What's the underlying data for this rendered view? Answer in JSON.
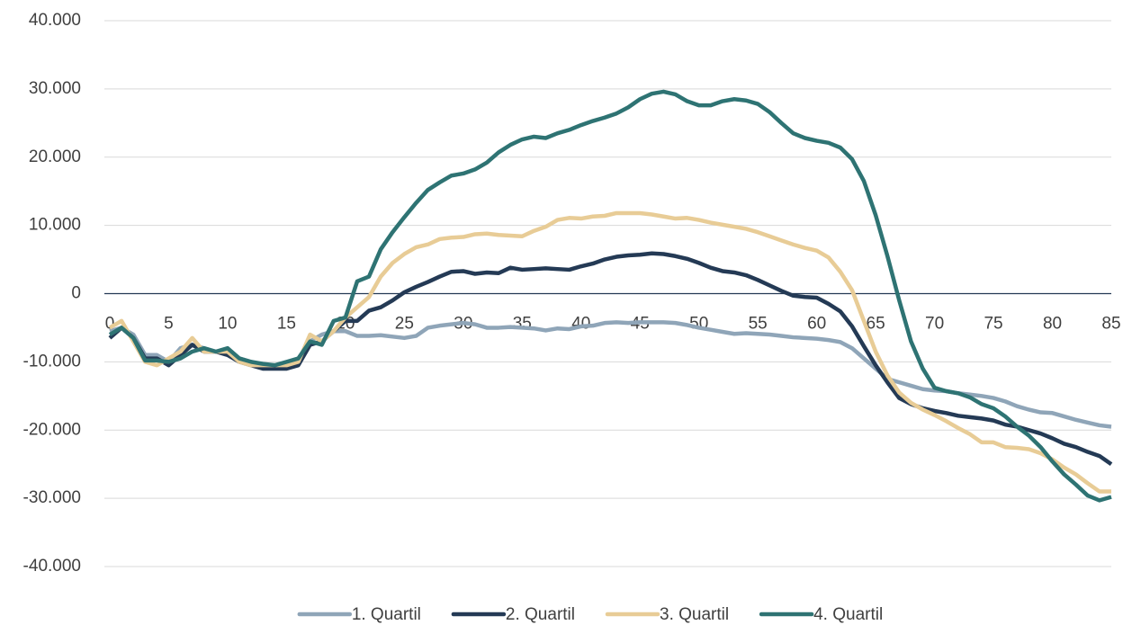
{
  "chart_data": {
    "type": "line",
    "x": [
      0,
      1,
      2,
      3,
      4,
      5,
      6,
      7,
      8,
      9,
      10,
      11,
      12,
      13,
      14,
      15,
      16,
      17,
      18,
      19,
      20,
      21,
      22,
      23,
      24,
      25,
      26,
      27,
      28,
      29,
      30,
      31,
      32,
      33,
      34,
      35,
      36,
      37,
      38,
      39,
      40,
      41,
      42,
      43,
      44,
      45,
      46,
      47,
      48,
      49,
      50,
      51,
      52,
      53,
      54,
      55,
      56,
      57,
      58,
      59,
      60,
      61,
      62,
      63,
      64,
      65,
      66,
      67,
      68,
      69,
      70,
      71,
      72,
      73,
      74,
      75,
      76,
      77,
      78,
      79,
      80,
      81,
      82,
      83,
      84,
      85
    ],
    "xlim": [
      0,
      85
    ],
    "xticks": [
      0,
      5,
      10,
      15,
      20,
      25,
      30,
      35,
      40,
      45,
      50,
      55,
      60,
      65,
      70,
      75,
      80,
      85
    ],
    "ylim": [
      -40000,
      40000
    ],
    "yticks": [
      {
        "value": -40000,
        "label": "-40.000"
      },
      {
        "value": -30000,
        "label": "-30.000"
      },
      {
        "value": -20000,
        "label": "-20.000"
      },
      {
        "value": -10000,
        "label": "-10.000"
      },
      0,
      {
        "value": 10000,
        "label": "10.000"
      },
      {
        "value": 20000,
        "label": "20.000"
      },
      {
        "value": 30000,
        "label": "30.000"
      },
      {
        "value": 40000,
        "label": "40.000"
      }
    ],
    "grid": true,
    "legend": "bottom",
    "series": [
      {
        "name": "1. Quartil",
        "color": "#8fa5b8",
        "values": [
          -5500,
          -5000,
          -6000,
          -9000,
          -9000,
          -10000,
          -8000,
          -7500,
          -8000,
          -8500,
          -8500,
          -9500,
          -10000,
          -10500,
          -10500,
          -10500,
          -10000,
          -7000,
          -6000,
          -5500,
          -5500,
          -6200,
          -6200,
          -6100,
          -6300,
          -6500,
          -6200,
          -5000,
          -4700,
          -4500,
          -4300,
          -4500,
          -5000,
          -5000,
          -4900,
          -5000,
          -5100,
          -5400,
          -5100,
          -5200,
          -4800,
          -4700,
          -4300,
          -4200,
          -4300,
          -4200,
          -4200,
          -4200,
          -4300,
          -4600,
          -5000,
          -5300,
          -5600,
          -5900,
          -5800,
          -5900,
          -6000,
          -6200,
          -6400,
          -6500,
          -6600,
          -6800,
          -7100,
          -8000,
          -9500,
          -11000,
          -12500,
          -13000,
          -13500,
          -14000,
          -14200,
          -14300,
          -14600,
          -14800,
          -15000,
          -15300,
          -15800,
          -16500,
          -17000,
          -17400,
          -17500,
          -18000,
          -18500,
          -18900,
          -19300,
          -19500
        ]
      },
      {
        "name": "2. Quartil",
        "color": "#243a55",
        "values": [
          -6500,
          -5000,
          -6500,
          -9500,
          -9500,
          -10500,
          -9000,
          -7500,
          -8500,
          -8500,
          -9000,
          -10000,
          -10500,
          -11000,
          -11000,
          -11000,
          -10500,
          -7500,
          -7000,
          -5500,
          -4000,
          -4000,
          -2500,
          -2000,
          -1000,
          200,
          1000,
          1700,
          2500,
          3200,
          3300,
          2900,
          3100,
          3000,
          3800,
          3500,
          3600,
          3700,
          3600,
          3500,
          4000,
          4400,
          5000,
          5400,
          5600,
          5700,
          5900,
          5800,
          5500,
          5100,
          4500,
          3800,
          3300,
          3100,
          2700,
          2000,
          1200,
          400,
          -300,
          -500,
          -600,
          -1500,
          -2600,
          -4800,
          -7700,
          -10500,
          -13000,
          -15300,
          -16200,
          -16800,
          -17200,
          -17500,
          -17900,
          -18100,
          -18300,
          -18600,
          -19200,
          -19500,
          -20000,
          -20500,
          -21200,
          -22000,
          -22500,
          -23200,
          -23800,
          -25000
        ]
      },
      {
        "name": "3. Quartil",
        "color": "#e8cc96",
        "values": [
          -5000,
          -4000,
          -7000,
          -10000,
          -10500,
          -9500,
          -8500,
          -6500,
          -8500,
          -8500,
          -8500,
          -10000,
          -10500,
          -10500,
          -10500,
          -10500,
          -10000,
          -6000,
          -7000,
          -5500,
          -3500,
          -2000,
          -500,
          2500,
          4500,
          5800,
          6800,
          7200,
          8000,
          8200,
          8300,
          8700,
          8800,
          8600,
          8500,
          8400,
          9200,
          9800,
          10800,
          11100,
          11000,
          11300,
          11400,
          11800,
          11800,
          11800,
          11600,
          11300,
          11000,
          11100,
          10800,
          10400,
          10100,
          9800,
          9500,
          9000,
          8400,
          7800,
          7200,
          6700,
          6300,
          5300,
          3200,
          500,
          -4000,
          -8500,
          -12000,
          -14500,
          -16000,
          -17000,
          -17800,
          -18700,
          -19700,
          -20600,
          -21800,
          -21800,
          -22500,
          -22600,
          -22800,
          -23400,
          -24300,
          -25500,
          -26500,
          -27800,
          -29000,
          -29000
        ]
      },
      {
        "name": "4. Quartil",
        "color": "#2e7373",
        "values": [
          -6000,
          -5000,
          -6500,
          -9800,
          -9800,
          -10000,
          -9500,
          -8500,
          -8000,
          -8500,
          -8000,
          -9500,
          -10000,
          -10300,
          -10500,
          -10000,
          -9500,
          -7000,
          -7500,
          -4000,
          -3500,
          1800,
          2500,
          6500,
          9000,
          11200,
          13300,
          15200,
          16300,
          17300,
          17600,
          18200,
          19200,
          20700,
          21800,
          22600,
          23000,
          22800,
          23500,
          24000,
          24700,
          25300,
          25800,
          26400,
          27300,
          28500,
          29300,
          29600,
          29200,
          28200,
          27600,
          27600,
          28200,
          28500,
          28300,
          27800,
          26600,
          25000,
          23500,
          22800,
          22400,
          22100,
          21400,
          19700,
          16500,
          11500,
          5500,
          -1000,
          -7000,
          -11000,
          -13800,
          -14300,
          -14600,
          -15200,
          -16200,
          -16800,
          -18000,
          -19500,
          -20800,
          -22500,
          -24600,
          -26500,
          -28000,
          -29600,
          -30300,
          -29800
        ]
      }
    ]
  }
}
